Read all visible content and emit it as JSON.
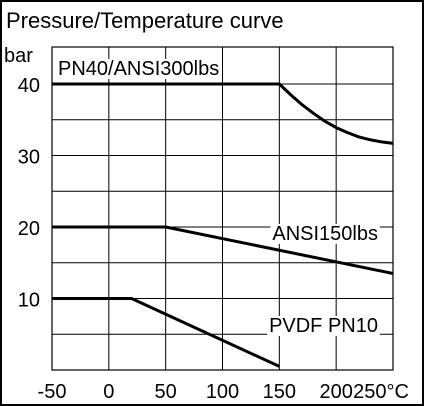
{
  "chart_data": {
    "type": "line",
    "title": "Pressure/Temperature curve",
    "ylabel": "bar",
    "xunit": "°C",
    "xlim": [
      -50,
      250
    ],
    "ylim": [
      0,
      40
    ],
    "x_ticks": [
      -50,
      0,
      50,
      100,
      150,
      200,
      250
    ],
    "x_tick_labels": [
      "-50",
      "0",
      "50",
      "100",
      "150",
      "200",
      "250°C"
    ],
    "y_ticks": [
      10,
      20,
      30,
      40
    ],
    "y_tick_labels": [
      "10",
      "20",
      "30",
      "40"
    ],
    "grid": true,
    "series": [
      {
        "name": "PN40/ANSI300lbs",
        "x": [
          -50,
          150,
          160,
          170,
          180,
          190,
          200,
          210,
          220,
          230,
          240,
          250
        ],
        "y": [
          40,
          40,
          38.5,
          37.1,
          35.9,
          34.8,
          33.9,
          33.2,
          32.6,
          32.2,
          31.9,
          31.7
        ]
      },
      {
        "name": "ANSI150lbs",
        "x": [
          -50,
          50,
          250
        ],
        "y": [
          20,
          20,
          13.5
        ]
      },
      {
        "name": "PVDF PN10",
        "x": [
          -50,
          20,
          150
        ],
        "y": [
          10,
          10,
          0.5
        ]
      }
    ]
  }
}
